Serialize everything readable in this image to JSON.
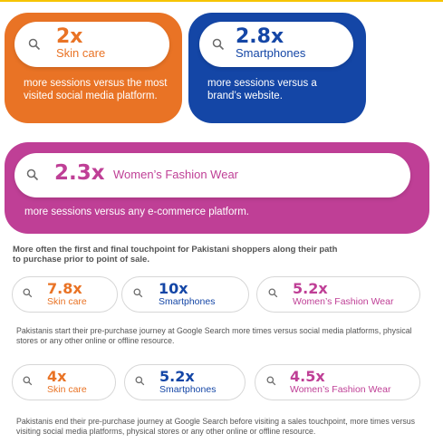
{
  "cards": [
    {
      "id": "skincare",
      "num": "2x",
      "label": "Skin care",
      "text": "more sessions versus the most visited social media platform."
    },
    {
      "id": "smartphones",
      "num": "2.8x",
      "label": "Smartphones",
      "text": "more sessions versus a brand’s website."
    },
    {
      "id": "fashion",
      "num": "2.3x",
      "label": "Women’s Fashion Wear",
      "text": "more sessions versus any e-commerce platform."
    }
  ],
  "section_title": "More often the first and final touchpoint for Pakistani shoppers along their path to purchase prior to point of sale.",
  "row1": [
    {
      "num": "7.8x",
      "label": "Skin care"
    },
    {
      "num": "10x",
      "label": "Smartphones"
    },
    {
      "num": "5.2x",
      "label": "Women’s Fashion Wear"
    }
  ],
  "note1": "Pakistanis start their pre-purchase journey at Google Search more times versus social media platforms, physical stores or any other online or offline resource.",
  "row2": [
    {
      "num": "4x",
      "label": "Skin care"
    },
    {
      "num": "5.2x",
      "label": "Smartphones"
    },
    {
      "num": "4.5x",
      "label": "Women’s Fashion Wear"
    }
  ],
  "note2": "Pakistanis end their pre-purchase journey at Google Search before visiting a sales touchpoint, more times versus visiting social media platforms, physical stores or any other online or offline resource.",
  "colors": {
    "orange": "#e97325",
    "blue": "#1446a6",
    "pink": "#bf3f96"
  },
  "icon": "search-icon"
}
